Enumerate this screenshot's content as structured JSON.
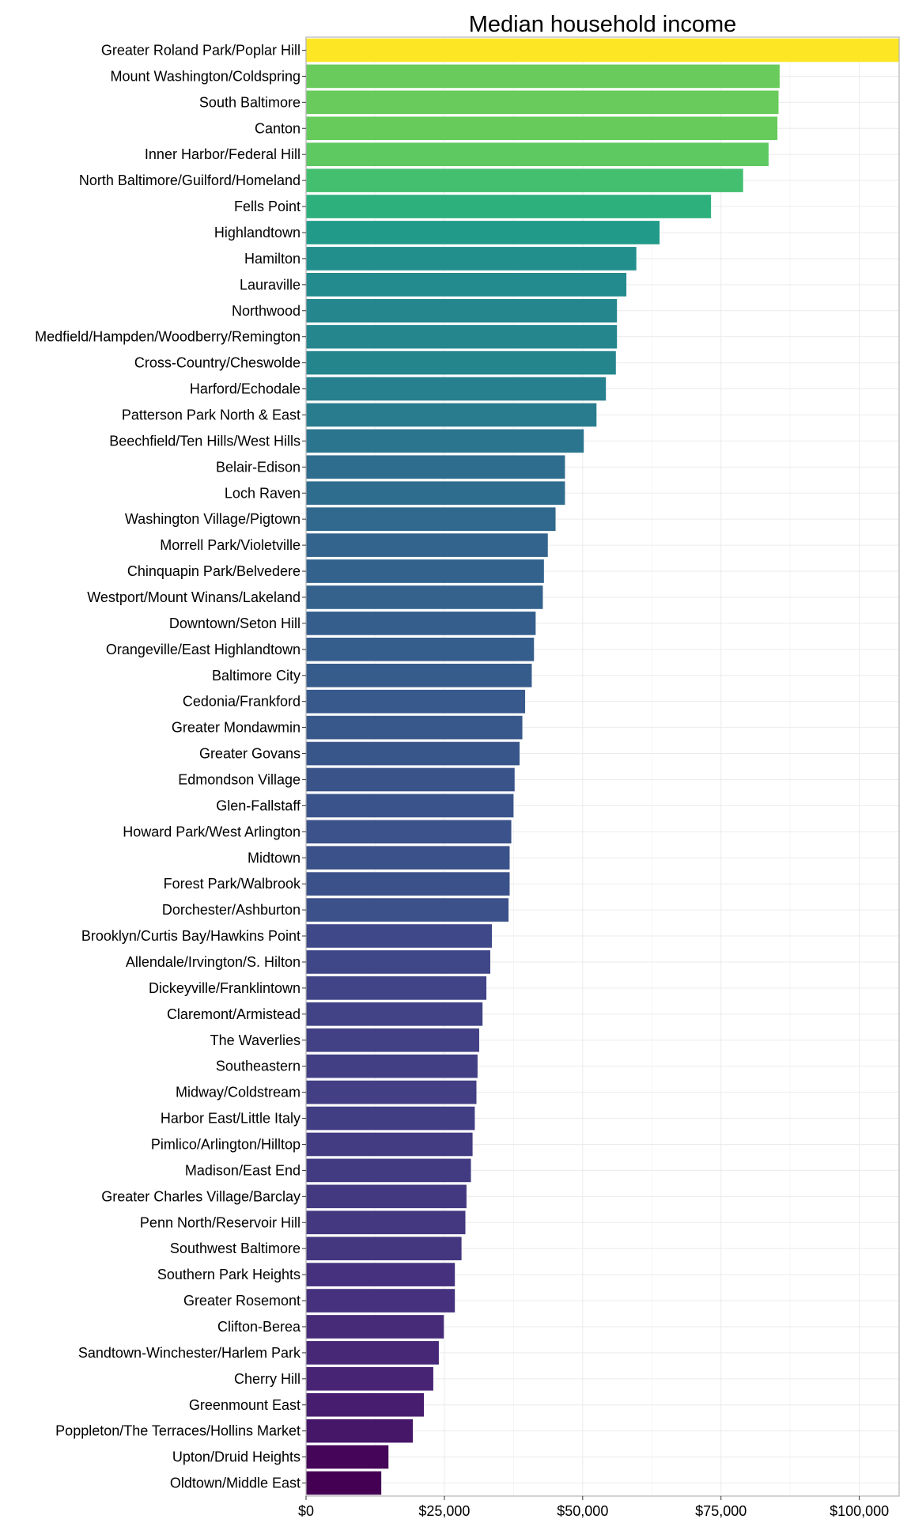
{
  "chart_data": {
    "type": "bar",
    "orientation": "horizontal",
    "title": "Median household income",
    "xlabel": "",
    "ylabel": "",
    "xlim": [
      0,
      107200
    ],
    "x_ticks": [
      0,
      25000,
      50000,
      75000,
      100000
    ],
    "x_tick_labels": [
      "$0",
      "$25,000",
      "$50,000",
      "$75,000",
      "$100,000"
    ],
    "grid": true,
    "legend": "none",
    "colormap": "viridis",
    "categories": [
      "Greater Roland Park/Poplar Hill",
      "Mount Washington/Coldspring",
      "South Baltimore",
      "Canton",
      "Inner Harbor/Federal Hill",
      "North Baltimore/Guilford/Homeland",
      "Fells Point",
      "Highlandtown",
      "Hamilton",
      "Lauraville",
      "Northwood",
      "Medfield/Hampden/Woodberry/Remington",
      "Cross-Country/Cheswolde",
      "Harford/Echodale",
      "Patterson Park North & East",
      "Beechfield/Ten Hills/West Hills",
      "Belair-Edison",
      "Loch Raven",
      "Washington Village/Pigtown",
      "Morrell Park/Violetville",
      "Chinquapin Park/Belvedere",
      "Westport/Mount Winans/Lakeland",
      "Downtown/Seton Hill",
      "Orangeville/East Highlandtown",
      "Baltimore City",
      "Cedonia/Frankford",
      "Greater Mondawmin",
      "Greater Govans",
      "Edmondson Village",
      "Glen-Fallstaff",
      "Howard Park/West Arlington",
      "Midtown",
      "Forest Park/Walbrook",
      "Dorchester/Ashburton",
      "Brooklyn/Curtis Bay/Hawkins Point",
      "Allendale/Irvington/S. Hilton",
      "Dickeyville/Franklintown",
      "Claremont/Armistead",
      "The Waverlies",
      "Southeastern",
      "Midway/Coldstream",
      "Harbor East/Little Italy",
      "Pimlico/Arlington/Hilltop",
      "Madison/East End",
      "Greater Charles Village/Barclay",
      "Penn North/Reservoir Hill",
      "Southwest Baltimore",
      "Southern Park Heights",
      "Greater Rosemont",
      "Clifton-Berea",
      "Sandtown-Winchester/Harlem Park",
      "Cherry Hill",
      "Greenmount East",
      "Poppleton/The Terraces/Hollins Market",
      "Upton/Druid Heights",
      "Oldtown/Middle East"
    ],
    "values": [
      107200,
      85600,
      85400,
      85200,
      83600,
      79000,
      73200,
      63900,
      59700,
      57900,
      56200,
      56200,
      56000,
      54200,
      52500,
      50200,
      46800,
      46800,
      45100,
      43700,
      43000,
      42800,
      41500,
      41200,
      40800,
      39600,
      39100,
      38600,
      37700,
      37500,
      37100,
      36800,
      36800,
      36600,
      33600,
      33300,
      32600,
      31900,
      31300,
      31000,
      30800,
      30500,
      30100,
      29800,
      29000,
      28800,
      28100,
      26900,
      26900,
      24900,
      24000,
      23000,
      21300,
      19300,
      14900,
      13600
    ]
  }
}
